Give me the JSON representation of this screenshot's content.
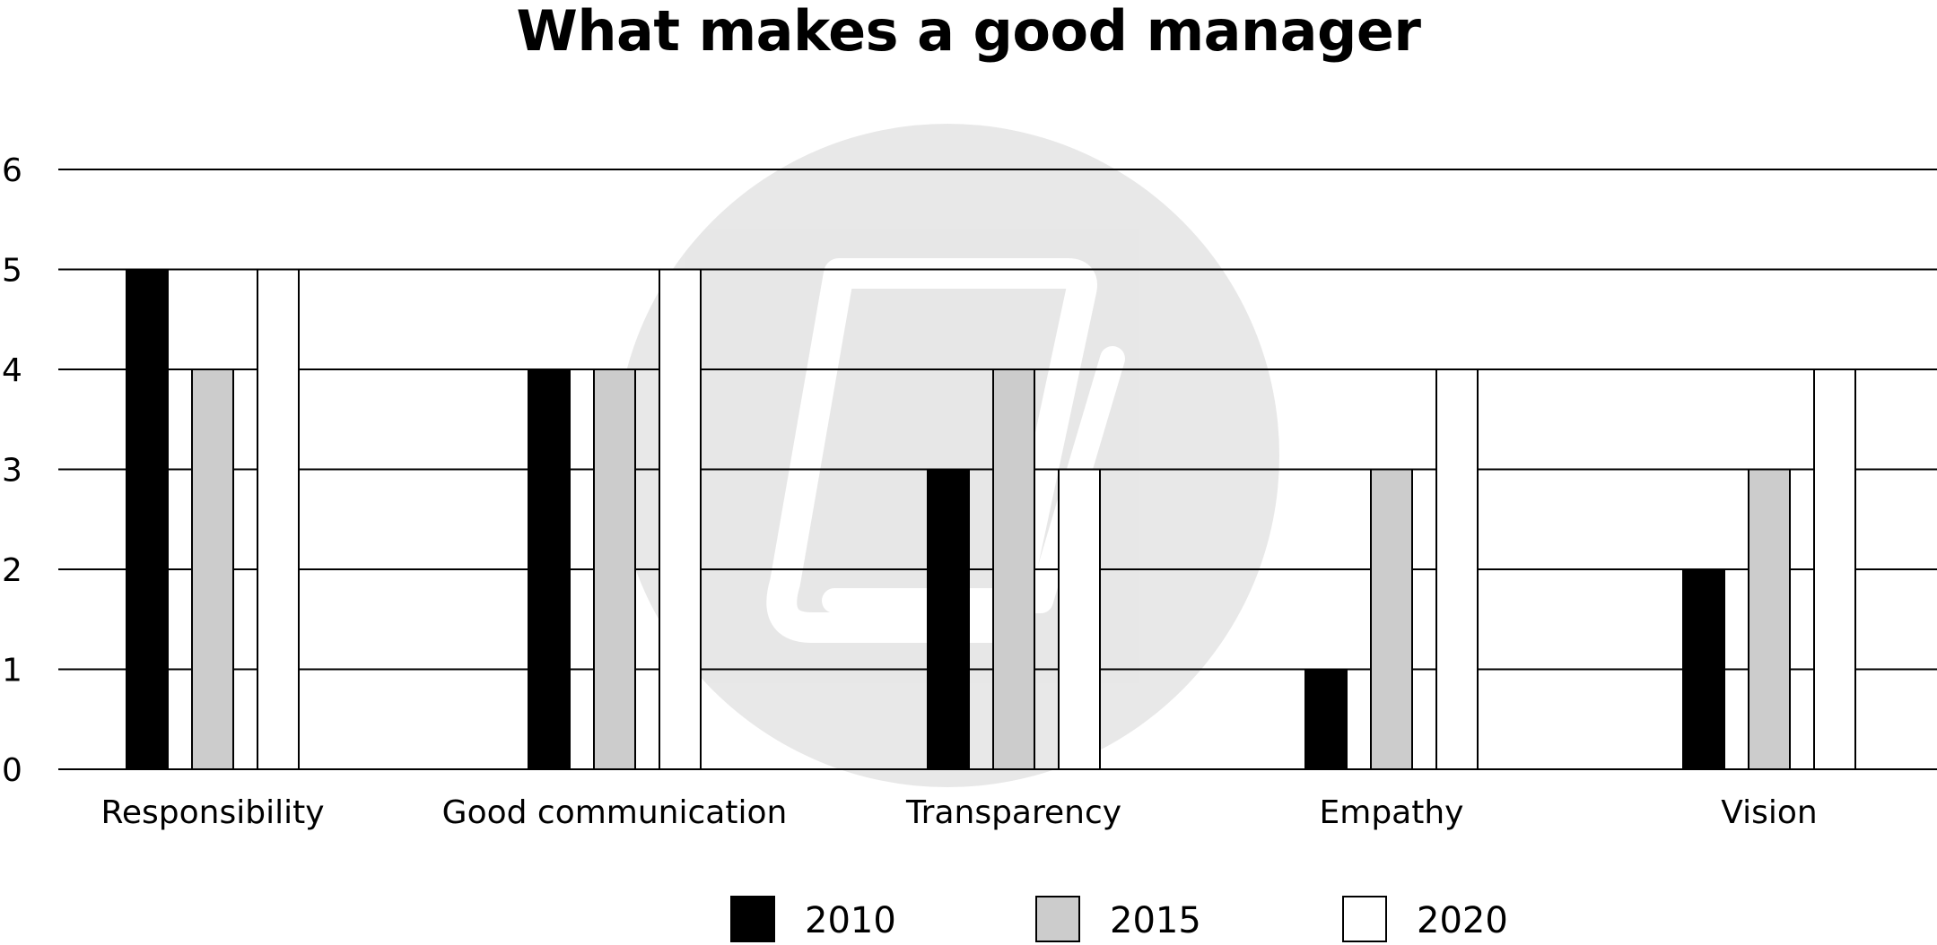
{
  "chart_data": {
    "type": "bar",
    "title": "What makes a good manager",
    "xlabel": "",
    "ylabel": "",
    "ylim": [
      0,
      6
    ],
    "yticks": [
      0,
      1,
      2,
      3,
      4,
      5,
      6
    ],
    "grid": true,
    "legend_position": "bottom",
    "categories": [
      "Responsibility",
      "Good communication",
      "Transparency",
      "Empathy",
      "Vision"
    ],
    "series": [
      {
        "name": "2010",
        "color": "#000000",
        "values": [
          5,
          4,
          3,
          1,
          2
        ]
      },
      {
        "name": "2015",
        "color": "#cccccc",
        "values": [
          4,
          4,
          4,
          3,
          3
        ]
      },
      {
        "name": "2020",
        "color": "#ffffff",
        "values": [
          5,
          5,
          3,
          4,
          4
        ]
      }
    ]
  }
}
